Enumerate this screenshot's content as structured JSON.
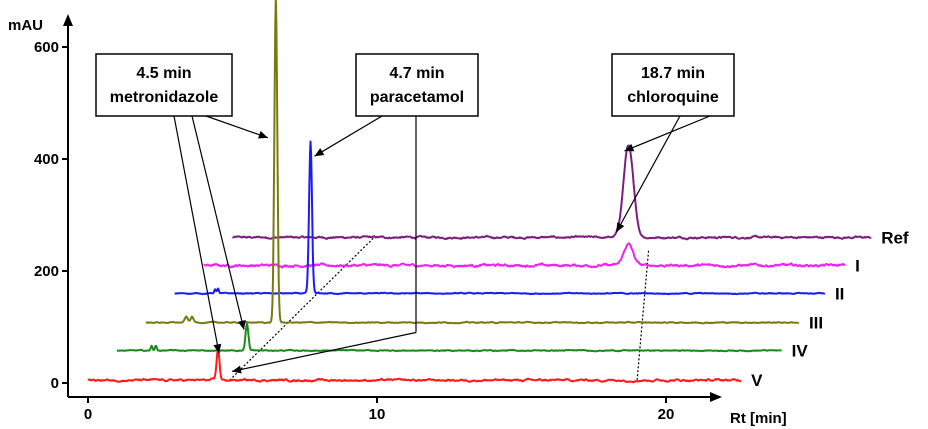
{
  "chart_data": {
    "type": "line",
    "title": "",
    "xlabel": "Rt [min]",
    "ylabel": "mAU",
    "xlim": [
      0,
      24
    ],
    "ylim": [
      0,
      600
    ],
    "x_ticks": [
      0,
      10,
      20
    ],
    "y_ticks": [
      0,
      200,
      400,
      600
    ],
    "grid": false,
    "legend": "none",
    "series": [
      {
        "name": "Ref",
        "color": "#7b1f7d",
        "x_offset": 5.0,
        "baseline": 260,
        "x_range": [
          0,
          22.1
        ],
        "noise": 2,
        "peaks": [
          {
            "rt": 13.7,
            "height": 165,
            "width": 0.17
          }
        ]
      },
      {
        "name": "I",
        "color": "#f020f0",
        "x_offset": 4.0,
        "baseline": 210,
        "x_range": [
          0,
          22.2
        ],
        "noise": 2.5,
        "peaks": [
          {
            "rt": 14.7,
            "height": 38,
            "width": 0.16
          }
        ]
      },
      {
        "name": "II",
        "color": "#1a1aff",
        "x_offset": 3.0,
        "baseline": 160,
        "x_range": [
          0,
          22.5
        ],
        "noise": 1,
        "peaks": [
          {
            "rt": 1.4,
            "height": 8,
            "width": 0.03
          },
          {
            "rt": 1.5,
            "height": 8,
            "width": 0.03
          },
          {
            "rt": 4.7,
            "height": 270,
            "width": 0.05
          }
        ]
      },
      {
        "name": "III",
        "color": "#7a7a10",
        "x_offset": 2.0,
        "baseline": 108,
        "x_range": [
          0,
          22.6
        ],
        "noise": 1,
        "peaks": [
          {
            "rt": 1.4,
            "height": 10,
            "width": 0.05
          },
          {
            "rt": 1.6,
            "height": 10,
            "width": 0.05
          },
          {
            "rt": 4.5,
            "height": 580,
            "width": 0.05
          }
        ]
      },
      {
        "name": "IV",
        "color": "#1a8a1a",
        "x_offset": 1.0,
        "baseline": 58,
        "x_range": [
          0,
          23.0
        ],
        "noise": 1,
        "peaks": [
          {
            "rt": 1.2,
            "height": 8,
            "width": 0.03
          },
          {
            "rt": 1.35,
            "height": 8,
            "width": 0.03
          },
          {
            "rt": 4.5,
            "height": 48,
            "width": 0.05
          }
        ]
      },
      {
        "name": "V",
        "color": "#ff1a1a",
        "x_offset": 0.0,
        "baseline": 5,
        "x_range": [
          0,
          22.6
        ],
        "noise": 2,
        "peaks": [
          {
            "rt": 4.5,
            "height": 55,
            "width": 0.05
          }
        ]
      }
    ],
    "annotations": [
      {
        "lines": [
          "4.5 min",
          "metronidazole"
        ]
      },
      {
        "lines": [
          "4.7 min",
          "paracetamol"
        ]
      },
      {
        "lines": [
          "18.7 min",
          "chloroquine"
        ]
      }
    ]
  }
}
